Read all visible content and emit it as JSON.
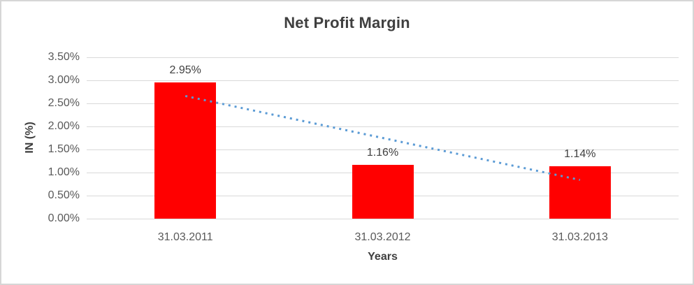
{
  "chart_data": {
    "type": "bar",
    "title": "Net Profit Margin",
    "xlabel": "Years",
    "ylabel": "IN (%)",
    "categories": [
      "31.03.2011",
      "31.03.2012",
      "31.03.2013"
    ],
    "values": [
      2.95,
      1.16,
      1.14
    ],
    "data_labels": [
      "2.95%",
      "1.16%",
      "1.14%"
    ],
    "ylim": [
      0,
      3.5
    ],
    "y_ticks": [
      {
        "value": 3.5,
        "label": "3.50%"
      },
      {
        "value": 3.0,
        "label": "3.00%"
      },
      {
        "value": 2.5,
        "label": "2.50%"
      },
      {
        "value": 2.0,
        "label": "2.00%"
      },
      {
        "value": 1.5,
        "label": "1.50%"
      },
      {
        "value": 1.0,
        "label": "1.00%"
      },
      {
        "value": 0.5,
        "label": "0.50%"
      },
      {
        "value": 0.0,
        "label": "0.00%"
      }
    ],
    "grid": true,
    "legend_position": "none",
    "bar_color": "#ff0000",
    "trendline": {
      "type": "linear",
      "style": "dotted",
      "color": "#5b9bd5",
      "start_value": 2.66,
      "end_value": 0.84
    }
  }
}
